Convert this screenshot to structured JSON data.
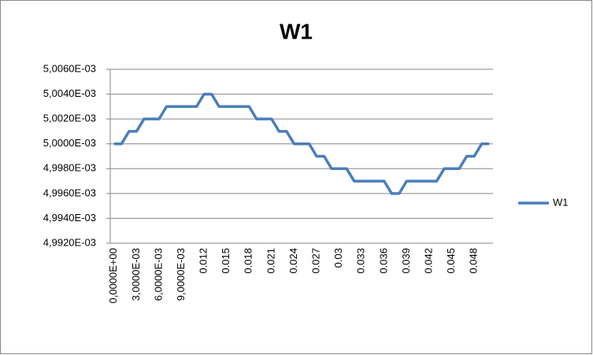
{
  "chart_data": {
    "type": "line",
    "title": "W1",
    "categories": [
      "0,0000E+00",
      null,
      null,
      "3,0000E-03",
      null,
      null,
      "6,0000E-03",
      null,
      null,
      "9,0000E-03",
      null,
      null,
      "0.012",
      null,
      null,
      "0.015",
      null,
      null,
      "0.018",
      null,
      null,
      "0.021",
      null,
      null,
      "0.024",
      null,
      null,
      "0.027",
      null,
      null,
      "0.03",
      null,
      null,
      "0.033",
      null,
      null,
      "0.036",
      null,
      null,
      "0.039",
      null,
      null,
      "0.042",
      null,
      null,
      "0.045",
      null,
      null,
      "0.048",
      null,
      null
    ],
    "series": [
      {
        "name": "W1",
        "color": "#4a7ebb",
        "values": [
          0.005,
          0.005,
          0.005001,
          0.005001,
          0.005002,
          0.005002,
          0.005002,
          0.005003,
          0.005003,
          0.005003,
          0.005003,
          0.005003,
          0.005004,
          0.005004,
          0.005003,
          0.005003,
          0.005003,
          0.005003,
          0.005003,
          0.005002,
          0.005002,
          0.005002,
          0.005001,
          0.005001,
          0.005,
          0.005,
          0.005,
          0.004999,
          0.004999,
          0.004998,
          0.004998,
          0.004998,
          0.004997,
          0.004997,
          0.004997,
          0.004997,
          0.004997,
          0.004996,
          0.004996,
          0.004997,
          0.004997,
          0.004997,
          0.004997,
          0.004997,
          0.004998,
          0.004998,
          0.004998,
          0.004999,
          0.004999,
          0.005,
          0.005
        ]
      }
    ],
    "ylim": [
      0.004992,
      0.005006
    ],
    "yticks": [
      {
        "value": 0.004992,
        "label": "4,9920E-03"
      },
      {
        "value": 0.004994,
        "label": "4,9940E-03"
      },
      {
        "value": 0.004996,
        "label": "4,9960E-03"
      },
      {
        "value": 0.004998,
        "label": "4,9980E-03"
      },
      {
        "value": 0.005,
        "label": "5,0000E-03"
      },
      {
        "value": 0.005002,
        "label": "5,0020E-03"
      },
      {
        "value": 0.005004,
        "label": "5,0040E-03"
      },
      {
        "value": 0.005006,
        "label": "5,0060E-03"
      }
    ],
    "grid": true,
    "legend": "right"
  }
}
